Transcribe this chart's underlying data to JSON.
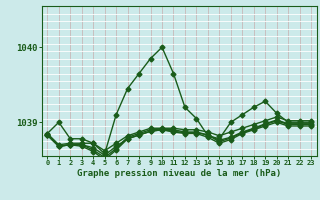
{
  "title": "Graphe pression niveau de la mer (hPa)",
  "bg_color": "#cceaea",
  "line_color": "#1a5c1a",
  "grid_color_v": "#c8b8b8",
  "grid_color_h": "#ffffff",
  "xmin": -0.5,
  "xmax": 23.5,
  "ymin": 1038.55,
  "ymax": 1040.55,
  "yticks": [
    1039,
    1040
  ],
  "xticks": [
    0,
    1,
    2,
    3,
    4,
    5,
    6,
    7,
    8,
    9,
    10,
    11,
    12,
    13,
    14,
    15,
    16,
    17,
    18,
    19,
    20,
    21,
    22,
    23
  ],
  "curves": [
    [
      1038.85,
      1039.0,
      1038.78,
      1038.78,
      1038.72,
      1038.58,
      1039.1,
      1039.45,
      1039.65,
      1039.85,
      1040.0,
      1039.65,
      1039.2,
      1039.05,
      1038.82,
      1038.78,
      1039.0,
      1039.1,
      1039.2,
      1039.28,
      1039.12,
      1039.0,
      1039.0,
      1039.0
    ],
    [
      1038.85,
      1038.7,
      1038.72,
      1038.72,
      1038.72,
      1038.62,
      1038.72,
      1038.82,
      1038.87,
      1038.92,
      1038.92,
      1038.92,
      1038.9,
      1038.9,
      1038.87,
      1038.82,
      1038.87,
      1038.92,
      1038.97,
      1039.02,
      1039.07,
      1039.02,
      1039.02,
      1039.02
    ],
    [
      1038.83,
      1038.68,
      1038.7,
      1038.7,
      1038.66,
      1038.56,
      1038.68,
      1038.78,
      1038.83,
      1038.88,
      1038.9,
      1038.88,
      1038.86,
      1038.86,
      1038.83,
      1038.76,
      1038.8,
      1038.87,
      1038.92,
      1038.98,
      1039.03,
      1038.98,
      1038.98,
      1038.98
    ],
    [
      1038.83,
      1038.68,
      1038.7,
      1038.7,
      1038.63,
      1038.53,
      1038.65,
      1038.8,
      1038.85,
      1038.9,
      1038.91,
      1038.9,
      1038.87,
      1038.87,
      1038.83,
      1038.74,
      1038.79,
      1038.86,
      1038.91,
      1038.97,
      1039.02,
      1038.97,
      1038.97,
      1038.97
    ],
    [
      1038.83,
      1038.68,
      1038.7,
      1038.68,
      1038.61,
      1038.5,
      1038.63,
      1038.78,
      1038.83,
      1038.88,
      1038.9,
      1038.87,
      1038.85,
      1038.85,
      1038.8,
      1038.72,
      1038.77,
      1038.85,
      1038.9,
      1038.95,
      1039.0,
      1038.95,
      1038.95,
      1038.95
    ]
  ],
  "marker": "D",
  "marker_size": 2.5,
  "linewidth": 1.0
}
